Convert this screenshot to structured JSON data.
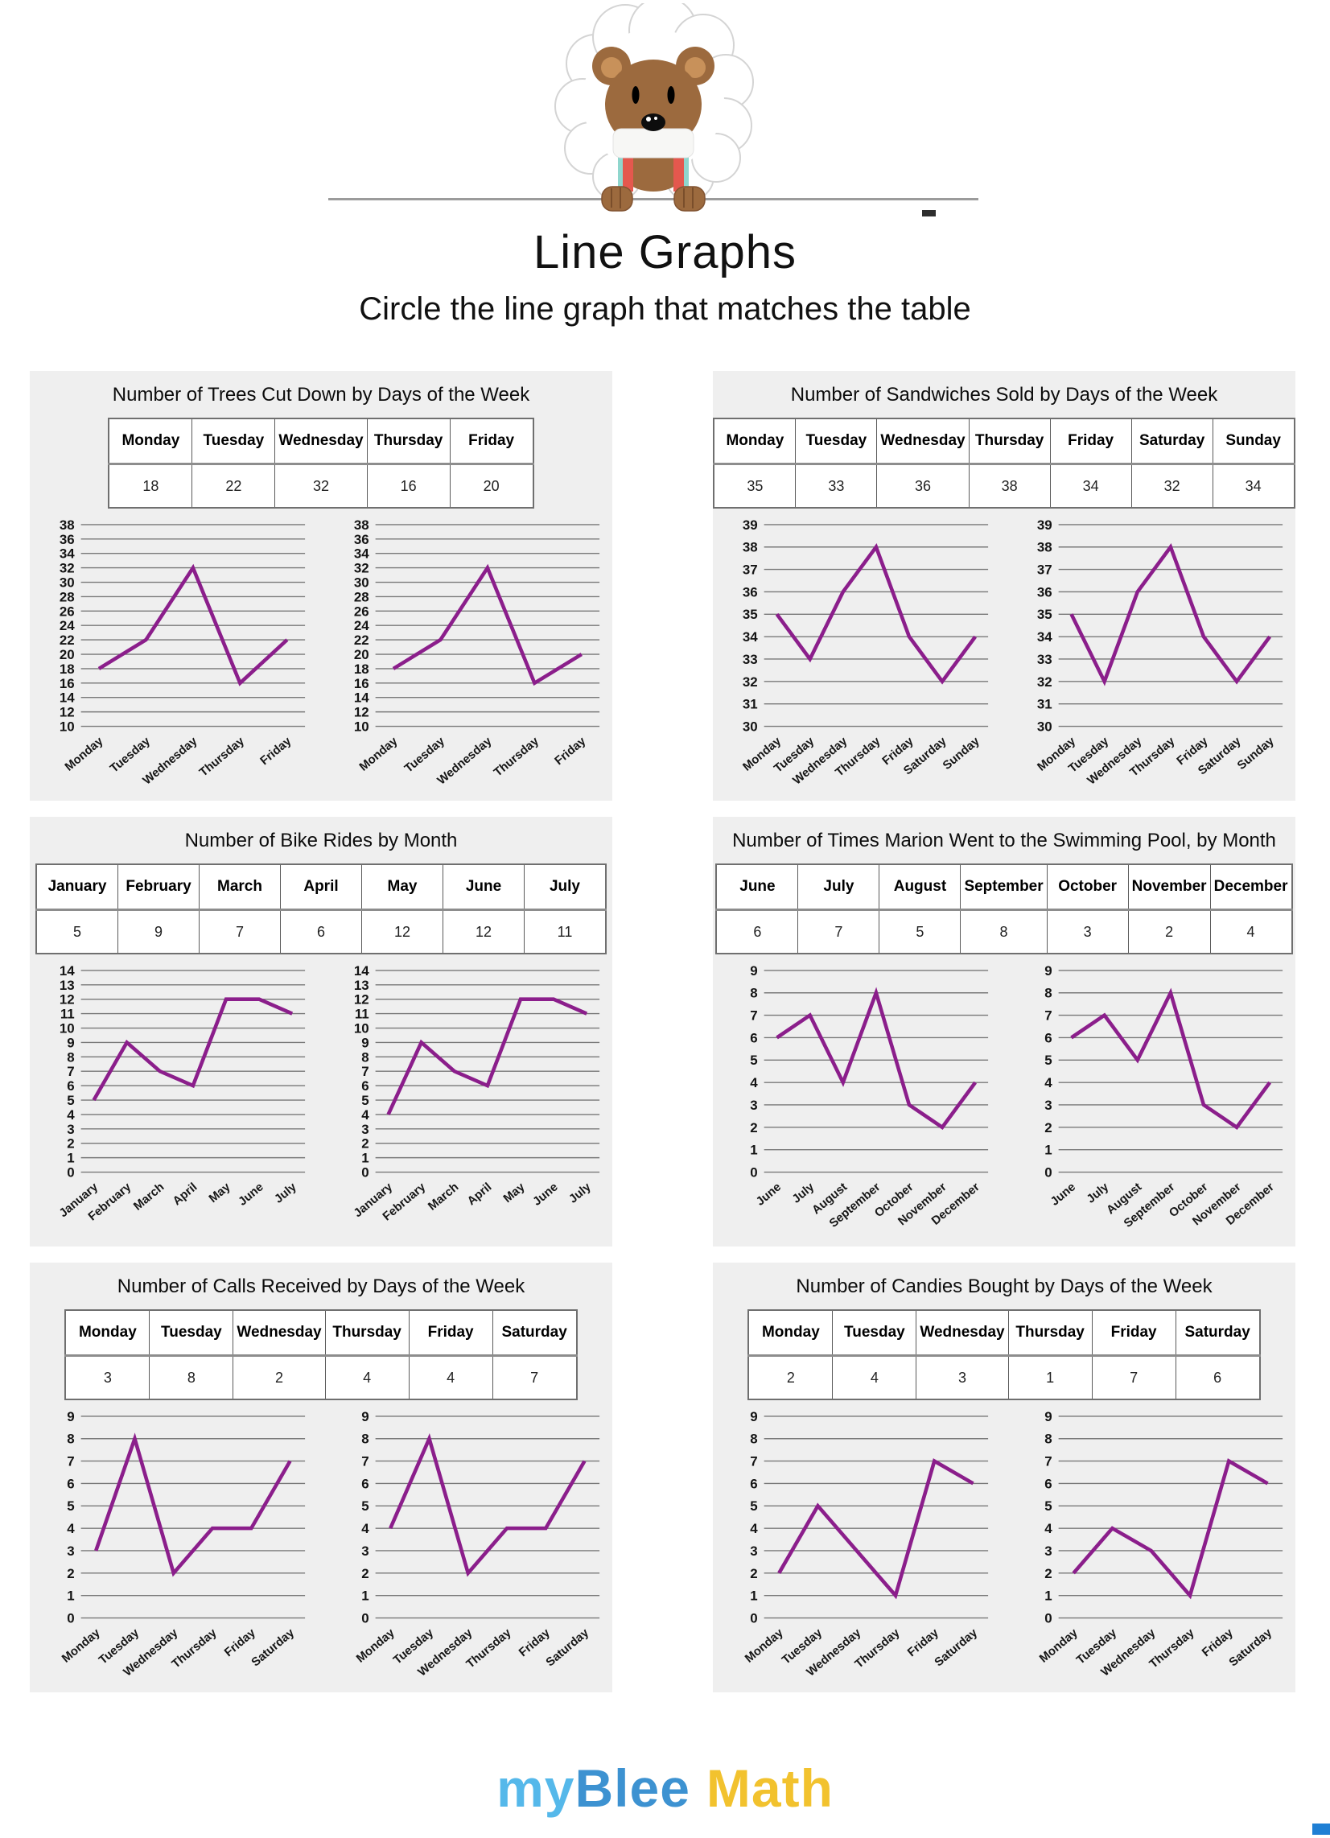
{
  "header": {
    "title": "Line Graphs",
    "subtitle": "Circle the line graph that matches the table"
  },
  "footer": {
    "logo_my": "my",
    "logo_blee": "Blee",
    "logo_math": "Math",
    "colors": {
      "my": "#55b8ea",
      "blee": "#3d92d1",
      "math": "#f2c22e"
    }
  },
  "colors": {
    "line": "#8b1e8b",
    "grid": "#787878",
    "tick_text": "#141414",
    "panel_bg": "#efefef"
  },
  "chart_data": [
    {
      "type": "line",
      "title": "Number of Trees Cut Down by Days of the Week",
      "categories": [
        "Monday",
        "Tuesday",
        "Wednesday",
        "Thursday",
        "Friday"
      ],
      "table_values": [
        18,
        22,
        32,
        16,
        20
      ],
      "ylim": [
        10,
        38
      ],
      "ystep": 2,
      "grid": true,
      "graphs": [
        {
          "name": "left-option",
          "values": [
            18,
            22,
            32,
            16,
            22
          ]
        },
        {
          "name": "right-option",
          "values": [
            18,
            22,
            32,
            16,
            20
          ]
        }
      ]
    },
    {
      "type": "line",
      "title": "Number of Sandwiches Sold by Days of the Week",
      "categories": [
        "Monday",
        "Tuesday",
        "Wednesday",
        "Thursday",
        "Friday",
        "Saturday",
        "Sunday"
      ],
      "table_values": [
        35,
        33,
        36,
        38,
        34,
        32,
        34
      ],
      "ylim": [
        30,
        39
      ],
      "ystep": 1,
      "grid": true,
      "graphs": [
        {
          "name": "left-option",
          "values": [
            35,
            33,
            36,
            38,
            34,
            32,
            34
          ]
        },
        {
          "name": "right-option",
          "values": [
            35,
            32,
            36,
            38,
            34,
            32,
            34
          ]
        }
      ]
    },
    {
      "type": "line",
      "title": "Number of Bike Rides by Month",
      "categories": [
        "January",
        "February",
        "March",
        "April",
        "May",
        "June",
        "July"
      ],
      "table_values": [
        5,
        9,
        7,
        6,
        12,
        12,
        11
      ],
      "ylim": [
        0,
        14
      ],
      "ystep": 1,
      "grid": true,
      "graphs": [
        {
          "name": "left-option",
          "values": [
            5,
            9,
            7,
            6,
            12,
            12,
            11
          ]
        },
        {
          "name": "right-option",
          "values": [
            4,
            9,
            7,
            6,
            12,
            12,
            11
          ]
        }
      ]
    },
    {
      "type": "line",
      "title": "Number of Times Marion Went to the Swimming Pool, by Month",
      "categories": [
        "June",
        "July",
        "August",
        "September",
        "October",
        "November",
        "December"
      ],
      "table_values": [
        6,
        7,
        5,
        8,
        3,
        2,
        4
      ],
      "ylim": [
        0,
        9
      ],
      "ystep": 1,
      "grid": true,
      "graphs": [
        {
          "name": "left-option",
          "values": [
            6,
            7,
            4,
            8,
            3,
            2,
            4
          ]
        },
        {
          "name": "right-option",
          "values": [
            6,
            7,
            5,
            8,
            3,
            2,
            4
          ]
        }
      ]
    },
    {
      "type": "line",
      "title": "Number of Calls Received by Days of the Week",
      "categories": [
        "Monday",
        "Tuesday",
        "Wednesday",
        "Thursday",
        "Friday",
        "Saturday"
      ],
      "table_values": [
        3,
        8,
        2,
        4,
        4,
        7
      ],
      "ylim": [
        0,
        9
      ],
      "ystep": 1,
      "grid": true,
      "graphs": [
        {
          "name": "left-option",
          "values": [
            3,
            8,
            2,
            4,
            4,
            7
          ]
        },
        {
          "name": "right-option",
          "values": [
            4,
            8,
            2,
            4,
            4,
            7
          ]
        }
      ]
    },
    {
      "type": "line",
      "title": "Number of Candies Bought by Days of the Week",
      "categories": [
        "Monday",
        "Tuesday",
        "Wednesday",
        "Thursday",
        "Friday",
        "Saturday"
      ],
      "table_values": [
        2,
        4,
        3,
        1,
        7,
        6
      ],
      "ylim": [
        0,
        9
      ],
      "ystep": 1,
      "grid": true,
      "graphs": [
        {
          "name": "left-option",
          "values": [
            2,
            5,
            3,
            1,
            7,
            6
          ]
        },
        {
          "name": "right-option",
          "values": [
            2,
            4,
            3,
            1,
            7,
            6
          ]
        }
      ]
    }
  ]
}
